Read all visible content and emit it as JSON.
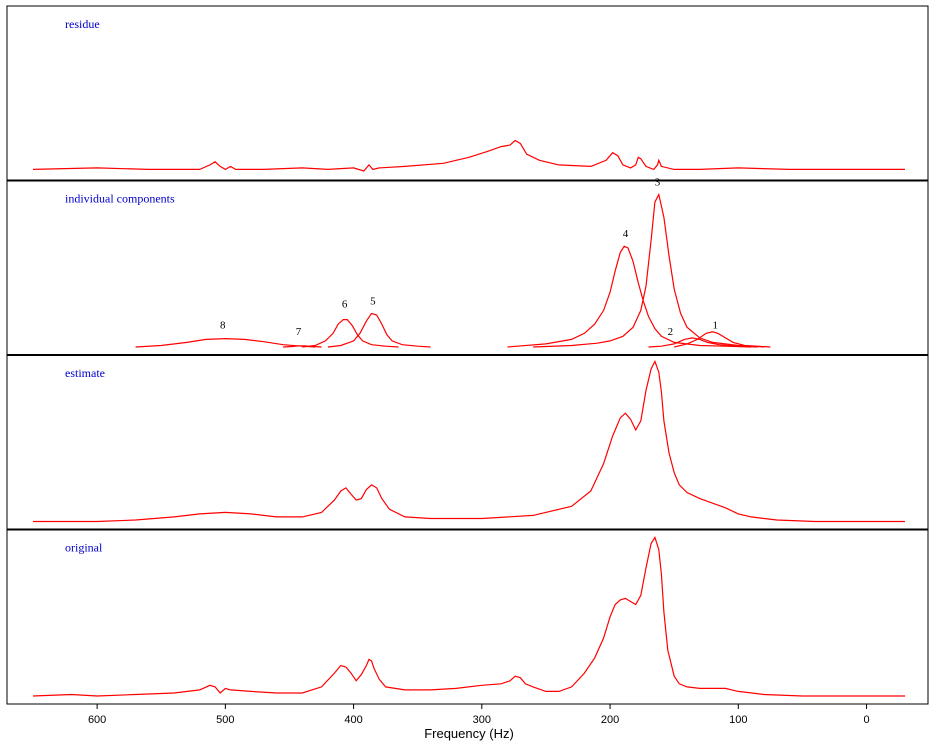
{
  "chart_data": {
    "type": "line",
    "xlabel": "Frequency (Hz)",
    "xlim": [
      650,
      -30
    ],
    "x_reversed": true,
    "x_ticks": [
      600,
      500,
      400,
      300,
      200,
      100,
      0
    ],
    "grid": false,
    "color": "#ff0000",
    "label_color": "#0000cc",
    "panels": [
      {
        "label": "residue",
        "series": [
          {
            "x": [
              650,
              600,
              560,
              520,
              512,
              508,
              504,
              500,
              496,
              492,
              470,
              440,
              420,
              400,
              392,
              388,
              385,
              380,
              360,
              330,
              310,
              295,
              285,
              278,
              274,
              270,
              265,
              255,
              240,
              215,
              203,
              198,
              194,
              190,
              184,
              180,
              178,
              176,
              172,
              166,
              163,
              162,
              160,
              150,
              130,
              100,
              60,
              30,
              -30
            ],
            "y": [
              0.02,
              0.03,
              0.02,
              0.02,
              0.05,
              0.07,
              0.04,
              0.02,
              0.04,
              0.02,
              0.02,
              0.03,
              0.02,
              0.03,
              0.01,
              0.05,
              0.02,
              0.03,
              0.04,
              0.06,
              0.1,
              0.14,
              0.17,
              0.18,
              0.21,
              0.19,
              0.12,
              0.08,
              0.05,
              0.04,
              0.08,
              0.13,
              0.11,
              0.05,
              0.03,
              0.05,
              0.1,
              0.09,
              0.04,
              0.02,
              0.05,
              0.08,
              0.04,
              0.02,
              0.02,
              0.03,
              0.02,
              0.02,
              0.02
            ]
          }
        ]
      },
      {
        "label": "individual components",
        "series": [
          {
            "name": "1",
            "x": [
              150,
              140,
              132,
              125,
              120,
              116,
              110,
              104,
              95,
              85,
              75
            ],
            "y": [
              0.0,
              0.02,
              0.05,
              0.09,
              0.1,
              0.09,
              0.06,
              0.03,
              0.01,
              0.005,
              0.0
            ]
          },
          {
            "name": "2",
            "x": [
              170,
              160,
              150,
              142,
              136,
              130,
              124,
              115,
              100,
              85
            ],
            "y": [
              0.0,
              0.005,
              0.02,
              0.05,
              0.06,
              0.05,
              0.03,
              0.015,
              0.005,
              0.0
            ]
          },
          {
            "name": "3",
            "x": [
              260,
              230,
              210,
              200,
              190,
              182,
              176,
              172,
              168,
              165,
              162,
              158,
              154,
              150,
              145,
              140,
              130,
              120,
              100,
              80
            ],
            "y": [
              0.0,
              0.01,
              0.025,
              0.04,
              0.07,
              0.13,
              0.24,
              0.4,
              0.7,
              0.95,
              1.0,
              0.85,
              0.6,
              0.38,
              0.22,
              0.13,
              0.06,
              0.03,
              0.01,
              0.0
            ]
          },
          {
            "name": "4",
            "x": [
              280,
              250,
              230,
              220,
              212,
              205,
              200,
              196,
              192,
              189,
              186,
              182,
              178,
              174,
              170,
              165,
              160,
              150,
              130,
              110,
              90
            ],
            "y": [
              0.0,
              0.02,
              0.05,
              0.09,
              0.15,
              0.24,
              0.36,
              0.5,
              0.62,
              0.66,
              0.65,
              0.56,
              0.42,
              0.3,
              0.2,
              0.12,
              0.07,
              0.03,
              0.01,
              0.005,
              0.0
            ]
          },
          {
            "name": "5",
            "x": [
              420,
              410,
              400,
              395,
              390,
              386,
              382,
              378,
              374,
              370,
              362,
              350,
              340
            ],
            "y": [
              0.0,
              0.01,
              0.04,
              0.09,
              0.17,
              0.22,
              0.21,
              0.15,
              0.08,
              0.04,
              0.015,
              0.005,
              0.0
            ]
          },
          {
            "name": "6",
            "x": [
              440,
              430,
              422,
              416,
              412,
              408,
              405,
              401,
              397,
              393,
              386,
              375,
              365
            ],
            "y": [
              0.0,
              0.01,
              0.04,
              0.09,
              0.15,
              0.18,
              0.18,
              0.14,
              0.08,
              0.04,
              0.015,
              0.005,
              0.0
            ]
          },
          {
            "name": "7",
            "x": [
              455,
              448,
              442,
              438,
              432,
              425
            ],
            "y": [
              0.0,
              0.003,
              0.008,
              0.008,
              0.003,
              0.0
            ]
          },
          {
            "name": "8",
            "x": [
              570,
              550,
              530,
              515,
              500,
              485,
              470,
              455,
              440,
              430
            ],
            "y": [
              0.0,
              0.01,
              0.03,
              0.05,
              0.055,
              0.05,
              0.035,
              0.015,
              0.005,
              0.0
            ]
          }
        ],
        "peak_labels": [
          {
            "text": "1",
            "x": 118,
            "y": 0.12
          },
          {
            "text": "2",
            "x": 153,
            "y": 0.08
          },
          {
            "text": "3",
            "x": 163,
            "y": 1.06
          },
          {
            "text": "4",
            "x": 188,
            "y": 0.72
          },
          {
            "text": "5",
            "x": 385,
            "y": 0.28
          },
          {
            "text": "6",
            "x": 407,
            "y": 0.26
          },
          {
            "text": "7",
            "x": 443,
            "y": 0.08
          },
          {
            "text": "8",
            "x": 502,
            "y": 0.12
          }
        ]
      },
      {
        "label": "estimate",
        "series": [
          {
            "x": [
              650,
              600,
              570,
              540,
              520,
              500,
              480,
              460,
              440,
              425,
              415,
              410,
              406,
              402,
              398,
              394,
              390,
              386,
              382,
              378,
              372,
              360,
              340,
              300,
              260,
              230,
              215,
              205,
              198,
              192,
              188,
              184,
              180,
              176,
              172,
              168,
              165,
              162,
              160,
              158,
              154,
              150,
              146,
              140,
              130,
              120,
              110,
              100,
              90,
              70,
              40,
              0,
              -30
            ],
            "y": [
              0.0,
              0.0,
              0.01,
              0.03,
              0.05,
              0.06,
              0.05,
              0.03,
              0.03,
              0.06,
              0.14,
              0.2,
              0.22,
              0.18,
              0.14,
              0.15,
              0.21,
              0.24,
              0.22,
              0.15,
              0.08,
              0.03,
              0.02,
              0.02,
              0.04,
              0.1,
              0.2,
              0.38,
              0.56,
              0.68,
              0.71,
              0.67,
              0.6,
              0.66,
              0.86,
              1.0,
              1.05,
              0.98,
              0.85,
              0.66,
              0.45,
              0.32,
              0.24,
              0.19,
              0.15,
              0.12,
              0.09,
              0.05,
              0.03,
              0.01,
              0.0,
              0.0,
              0.0
            ]
          }
        ]
      },
      {
        "label": "original",
        "series": [
          {
            "x": [
              650,
              620,
              600,
              570,
              540,
              520,
              512,
              508,
              504,
              500,
              496,
              480,
              460,
              440,
              425,
              415,
              410,
              406,
              402,
              398,
              394,
              390,
              388,
              386,
              384,
              380,
              375,
              360,
              340,
              320,
              300,
              285,
              278,
              274,
              270,
              266,
              260,
              250,
              240,
              230,
              220,
              212,
              205,
              200,
              196,
              192,
              188,
              184,
              180,
              176,
              172,
              168,
              165,
              162,
              160,
              158,
              155,
              150,
              146,
              140,
              130,
              120,
              115,
              110,
              105,
              100,
              80,
              50,
              20,
              -30
            ],
            "y": [
              0.0,
              0.01,
              0.0,
              0.01,
              0.02,
              0.04,
              0.07,
              0.06,
              0.02,
              0.05,
              0.04,
              0.03,
              0.02,
              0.02,
              0.06,
              0.15,
              0.2,
              0.19,
              0.15,
              0.1,
              0.14,
              0.2,
              0.24,
              0.23,
              0.18,
              0.11,
              0.06,
              0.04,
              0.04,
              0.05,
              0.07,
              0.08,
              0.1,
              0.13,
              0.12,
              0.08,
              0.06,
              0.03,
              0.03,
              0.06,
              0.15,
              0.25,
              0.38,
              0.52,
              0.6,
              0.63,
              0.64,
              0.62,
              0.6,
              0.66,
              0.84,
              1.0,
              1.04,
              0.96,
              0.8,
              0.55,
              0.3,
              0.13,
              0.08,
              0.06,
              0.05,
              0.05,
              0.05,
              0.05,
              0.04,
              0.03,
              0.01,
              0.0,
              0.0,
              0.0
            ]
          }
        ]
      }
    ]
  }
}
